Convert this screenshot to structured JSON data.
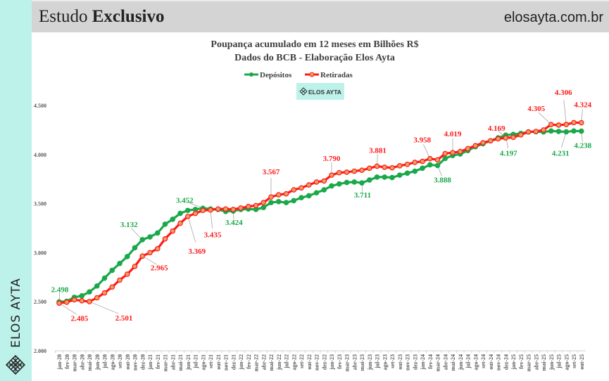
{
  "header": {
    "title_regular": "Estudo",
    "title_bold": "Exclusivo",
    "site": "elosayta.com.br"
  },
  "sidebar": {
    "brand": "ELOS AYTA"
  },
  "badge": {
    "text": "ELOS AYTA"
  },
  "colors": {
    "depositos": "#1aa84a",
    "retiradas": "#ff1a1a",
    "marker_fill": "#e8a060",
    "strip": "#bdf2ea"
  },
  "chart_data": {
    "type": "line",
    "title": "Poupança acumulado em 12 meses em Bilhões R$",
    "subtitle": "Dados do BCB - Elaboração Elos Ayta",
    "legend_position": "top-center",
    "ylim": [
      2000,
      4500
    ],
    "yticks": [
      "2.000",
      "2.500",
      "3.000",
      "3.500",
      "4.000",
      "4.500"
    ],
    "categories": [
      "jan-20",
      "fev-20",
      "mar-20",
      "abr-20",
      "mai-20",
      "jun-20",
      "jul-20",
      "ago-20",
      "set-20",
      "out-20",
      "nov-20",
      "dez-20",
      "jan-21",
      "fev-21",
      "mar-21",
      "abr-21",
      "mai-21",
      "jun-21",
      "jul-21",
      "ago-21",
      "set-21",
      "out-21",
      "nov-21",
      "dez-21",
      "jan-22",
      "fev-22",
      "mar-22",
      "abr-22",
      "mai-22",
      "jun-22",
      "jul-22",
      "ago-22",
      "set-22",
      "out-22",
      "nov-22",
      "dez-22",
      "jan-23",
      "fev-23",
      "mar-23",
      "abr-23",
      "mai-23",
      "jun-23",
      "jul-23",
      "ago-23",
      "set-23",
      "out-23",
      "nov-23",
      "dez-23",
      "jan-24",
      "fev-24",
      "mar-24",
      "abr-24",
      "mai-24",
      "jun-24",
      "jul-24",
      "ago-24",
      "set-24",
      "out-24",
      "nov-24",
      "dez-24",
      "jan-25",
      "fev-25",
      "mar-25",
      "abr-25",
      "mai-25",
      "jun-25",
      "jul-25",
      "ago-25",
      "set-25",
      "out-25"
    ],
    "series": [
      {
        "name": "Depósitos",
        "values": [
          2498,
          2505,
          2545,
          2560,
          2600,
          2660,
          2740,
          2820,
          2890,
          2960,
          3050,
          3132,
          3160,
          3200,
          3290,
          3340,
          3400,
          3430,
          3440,
          3452,
          3445,
          3440,
          3420,
          3424,
          3440,
          3445,
          3440,
          3460,
          3510,
          3520,
          3510,
          3530,
          3560,
          3580,
          3610,
          3640,
          3680,
          3700,
          3715,
          3720,
          3711,
          3740,
          3770,
          3770,
          3765,
          3790,
          3810,
          3830,
          3860,
          3895,
          3888,
          3960,
          3990,
          4005,
          4040,
          4080,
          4110,
          4140,
          4170,
          4197,
          4205,
          4215,
          4230,
          4232,
          4230,
          4240,
          4235,
          4231,
          4240,
          4238
        ]
      },
      {
        "name": "Retiradas",
        "values": [
          2485,
          2495,
          2520,
          2510,
          2501,
          2540,
          2590,
          2650,
          2720,
          2780,
          2860,
          2965,
          3000,
          3040,
          3140,
          3220,
          3300,
          3369,
          3400,
          3430,
          3435,
          3445,
          3445,
          3440,
          3455,
          3470,
          3480,
          3510,
          3567,
          3590,
          3600,
          3640,
          3660,
          3690,
          3720,
          3730,
          3790,
          3815,
          3820,
          3830,
          3840,
          3860,
          3881,
          3870,
          3865,
          3885,
          3900,
          3920,
          3930,
          3958,
          3945,
          4010,
          4019,
          4030,
          4060,
          4090,
          4120,
          4140,
          4160,
          4169,
          4175,
          4200,
          4230,
          4235,
          4250,
          4305,
          4300,
          4306,
          4325,
          4324
        ]
      }
    ],
    "data_labels": [
      {
        "series": 0,
        "index": 0,
        "text": "2.498"
      },
      {
        "series": 1,
        "index": 0,
        "text": "2.485"
      },
      {
        "series": 1,
        "index": 4,
        "text": "2.501"
      },
      {
        "series": 0,
        "index": 11,
        "text": "3.132"
      },
      {
        "series": 1,
        "index": 11,
        "text": "2.965"
      },
      {
        "series": 1,
        "index": 17,
        "text": "3.369"
      },
      {
        "series": 0,
        "index": 19,
        "text": "3.452"
      },
      {
        "series": 1,
        "index": 20,
        "text": "3.435"
      },
      {
        "series": 0,
        "index": 23,
        "text": "3.424"
      },
      {
        "series": 1,
        "index": 28,
        "text": "3.567"
      },
      {
        "series": 1,
        "index": 36,
        "text": "3.790"
      },
      {
        "series": 0,
        "index": 40,
        "text": "3.711"
      },
      {
        "series": 1,
        "index": 42,
        "text": "3.881"
      },
      {
        "series": 1,
        "index": 49,
        "text": "3.958"
      },
      {
        "series": 0,
        "index": 50,
        "text": "3.888"
      },
      {
        "series": 1,
        "index": 52,
        "text": "4.019"
      },
      {
        "series": 1,
        "index": 59,
        "text": "4.169"
      },
      {
        "series": 0,
        "index": 59,
        "text": "4.197"
      },
      {
        "series": 1,
        "index": 65,
        "text": "4.305"
      },
      {
        "series": 1,
        "index": 67,
        "text": "4.306"
      },
      {
        "series": 0,
        "index": 67,
        "text": "4.231"
      },
      {
        "series": 1,
        "index": 69,
        "text": "4.324"
      },
      {
        "series": 0,
        "index": 69,
        "text": "4.238"
      }
    ]
  }
}
